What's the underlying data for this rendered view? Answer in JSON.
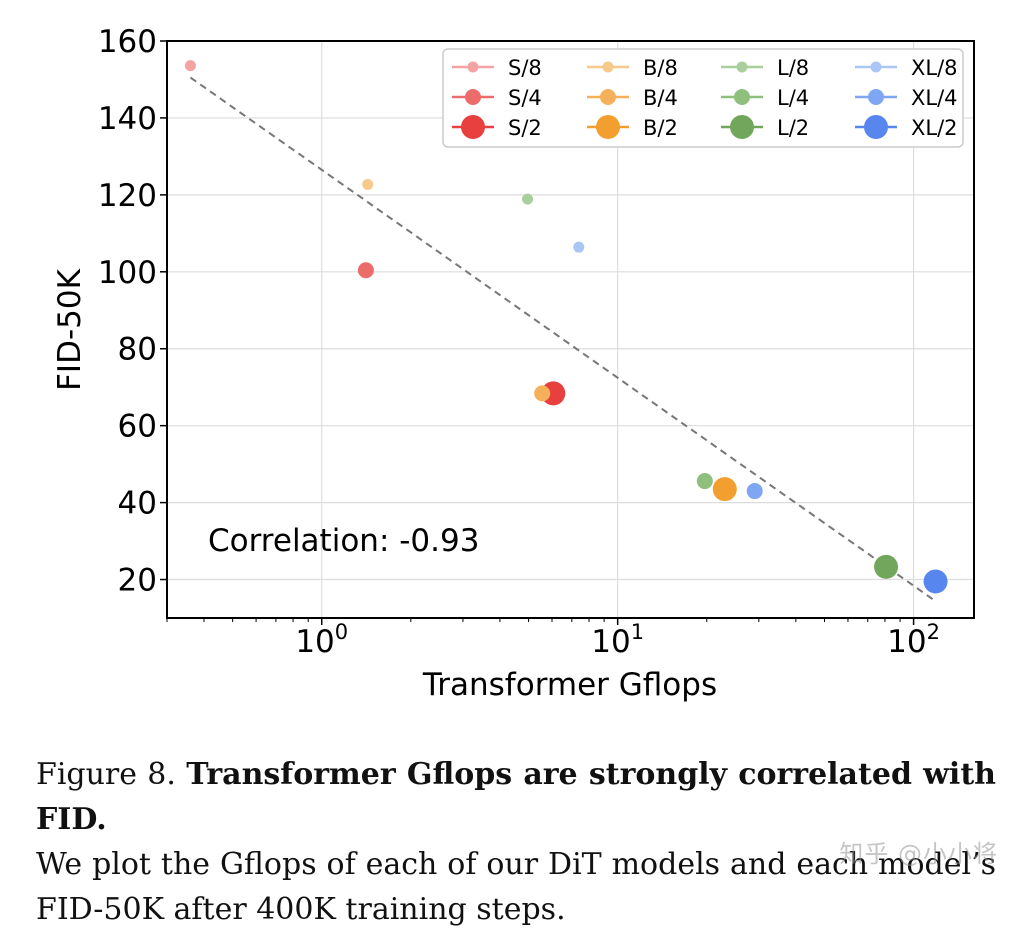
{
  "chart_data": {
    "type": "scatter",
    "xscale": "log",
    "xlim": [
      0.3,
      160
    ],
    "ylim": [
      10,
      160
    ],
    "xlabel": "Transformer Gflops",
    "ylabel": "FID-50K",
    "yticks": [
      20,
      40,
      60,
      80,
      100,
      120,
      140,
      160
    ],
    "xticks": [
      {
        "value": 1,
        "base": "10",
        "exp": "0"
      },
      {
        "value": 10,
        "base": "10",
        "exp": "1"
      },
      {
        "value": 100,
        "base": "10",
        "exp": "2"
      }
    ],
    "grid": true,
    "legend_position": "top-right",
    "annotation": "Correlation: -0.93",
    "trendline": {
      "x": [
        0.36,
        118
      ],
      "y": [
        150.5,
        14.5
      ],
      "style": "dashed",
      "color": "#777777"
    },
    "points": [
      {
        "label": "S/8",
        "gflops": 0.36,
        "fid": 153.6,
        "color": "#f4a3a3",
        "size": "small"
      },
      {
        "label": "S/4",
        "gflops": 1.41,
        "fid": 100.4,
        "color": "#ec6b6b",
        "size": "medium"
      },
      {
        "label": "S/2",
        "gflops": 6.06,
        "fid": 68.4,
        "color": "#e8403f",
        "size": "large"
      },
      {
        "label": "B/8",
        "gflops": 1.43,
        "fid": 122.7,
        "color": "#f7c98b",
        "size": "small"
      },
      {
        "label": "B/4",
        "gflops": 5.56,
        "fid": 68.4,
        "color": "#f5b15a",
        "size": "medium"
      },
      {
        "label": "B/2",
        "gflops": 23.01,
        "fid": 43.5,
        "color": "#f39f2f",
        "size": "large"
      },
      {
        "label": "L/8",
        "gflops": 4.96,
        "fid": 118.9,
        "color": "#a9cf9c",
        "size": "small"
      },
      {
        "label": "L/4",
        "gflops": 19.7,
        "fid": 45.6,
        "color": "#8fbf7d",
        "size": "medium"
      },
      {
        "label": "L/2",
        "gflops": 80.71,
        "fid": 23.3,
        "color": "#73a65d",
        "size": "large"
      },
      {
        "label": "XL/8",
        "gflops": 7.39,
        "fid": 106.4,
        "color": "#aac6f5",
        "size": "small"
      },
      {
        "label": "XL/4",
        "gflops": 29.05,
        "fid": 43.0,
        "color": "#7ea6f2",
        "size": "medium"
      },
      {
        "label": "XL/2",
        "gflops": 118.64,
        "fid": 19.5,
        "color": "#5886ef",
        "size": "large"
      }
    ],
    "legend": [
      {
        "label": "S/8",
        "color": "#f4a3a3",
        "size": "small"
      },
      {
        "label": "S/4",
        "color": "#ec6b6b",
        "size": "medium"
      },
      {
        "label": "S/2",
        "color": "#e8403f",
        "size": "large"
      },
      {
        "label": "B/8",
        "color": "#f7c98b",
        "size": "small"
      },
      {
        "label": "B/4",
        "color": "#f5b15a",
        "size": "medium"
      },
      {
        "label": "B/2",
        "color": "#f39f2f",
        "size": "large"
      },
      {
        "label": "L/8",
        "color": "#a9cf9c",
        "size": "small"
      },
      {
        "label": "L/4",
        "color": "#8fbf7d",
        "size": "medium"
      },
      {
        "label": "L/2",
        "color": "#73a65d",
        "size": "large"
      },
      {
        "label": "XL/8",
        "color": "#aac6f5",
        "size": "small"
      },
      {
        "label": "XL/4",
        "color": "#7ea6f2",
        "size": "medium"
      },
      {
        "label": "XL/2",
        "color": "#5886ef",
        "size": "large"
      }
    ]
  },
  "caption": {
    "prefix": "Figure 8. ",
    "bold": "Transformer Gflops are strongly correlated with FID.",
    "line2": "We plot the Gflops of each of our DiT models and each model’s",
    "line3": "FID-50K after 400K training steps."
  },
  "watermark": "知乎 @小小将"
}
